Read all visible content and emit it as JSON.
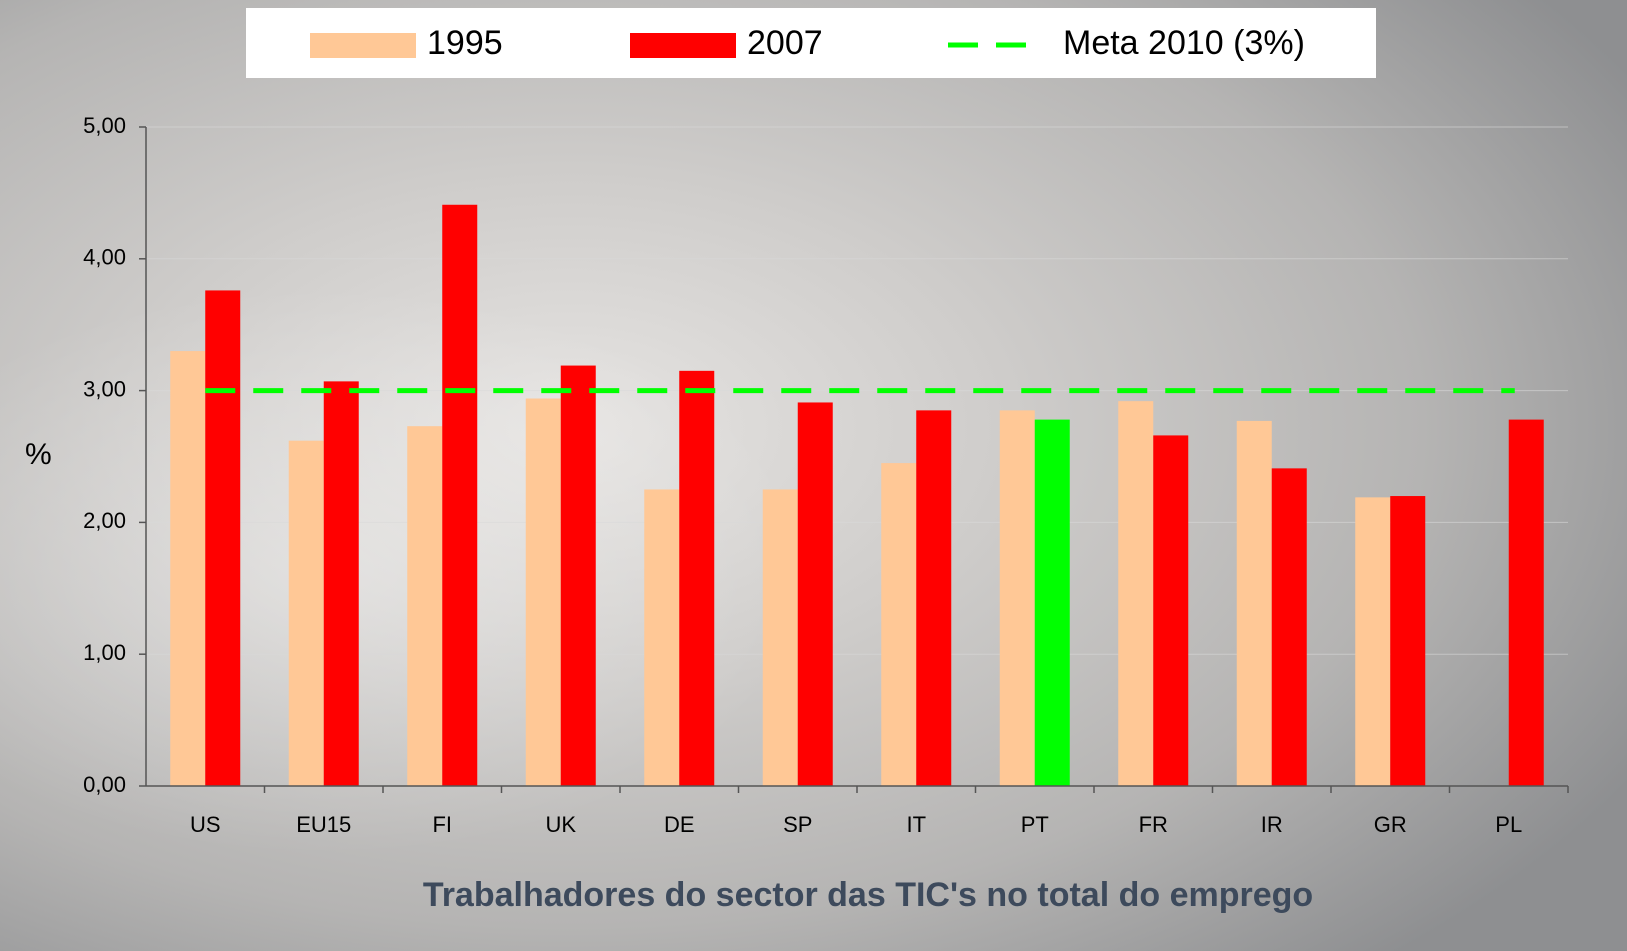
{
  "chart_data": {
    "type": "bar",
    "title": "Trabalhadores do sector das TIC's no total do emprego",
    "y_label": "%",
    "categories": [
      "US",
      "EU15",
      "FI",
      "UK",
      "DE",
      "SP",
      "IT",
      "PT",
      "FR",
      "IR",
      "GR",
      "PL"
    ],
    "series": [
      {
        "name": "1995",
        "color": "#ffc896",
        "values": [
          3.3,
          2.62,
          2.73,
          2.94,
          2.25,
          2.25,
          2.45,
          2.85,
          2.92,
          2.77,
          2.19,
          null
        ]
      },
      {
        "name": "2007",
        "color": "#ff0000",
        "colors": [
          "#ff0000",
          "#ff0000",
          "#ff0000",
          "#ff0000",
          "#ff0000",
          "#ff0000",
          "#ff0000",
          "#00ff00",
          "#ff0000",
          "#ff0000",
          "#ff0000",
          "#ff0000"
        ],
        "values": [
          3.76,
          3.07,
          4.41,
          3.19,
          3.15,
          2.91,
          2.85,
          2.78,
          2.66,
          2.41,
          2.2,
          2.78
        ]
      }
    ],
    "reference_line": {
      "name": "Meta 2010 (3%)",
      "value": 3,
      "color": "#00ff00"
    },
    "ylim": [
      0,
      5
    ],
    "yticks": [
      {
        "value": 0,
        "label": "0,00"
      },
      {
        "value": 1,
        "label": "1,00"
      },
      {
        "value": 2,
        "label": "2,00"
      },
      {
        "value": 3,
        "label": "3,00"
      },
      {
        "value": 4,
        "label": "4,00"
      },
      {
        "value": 5,
        "label": "5,00"
      }
    ],
    "grid": true
  }
}
